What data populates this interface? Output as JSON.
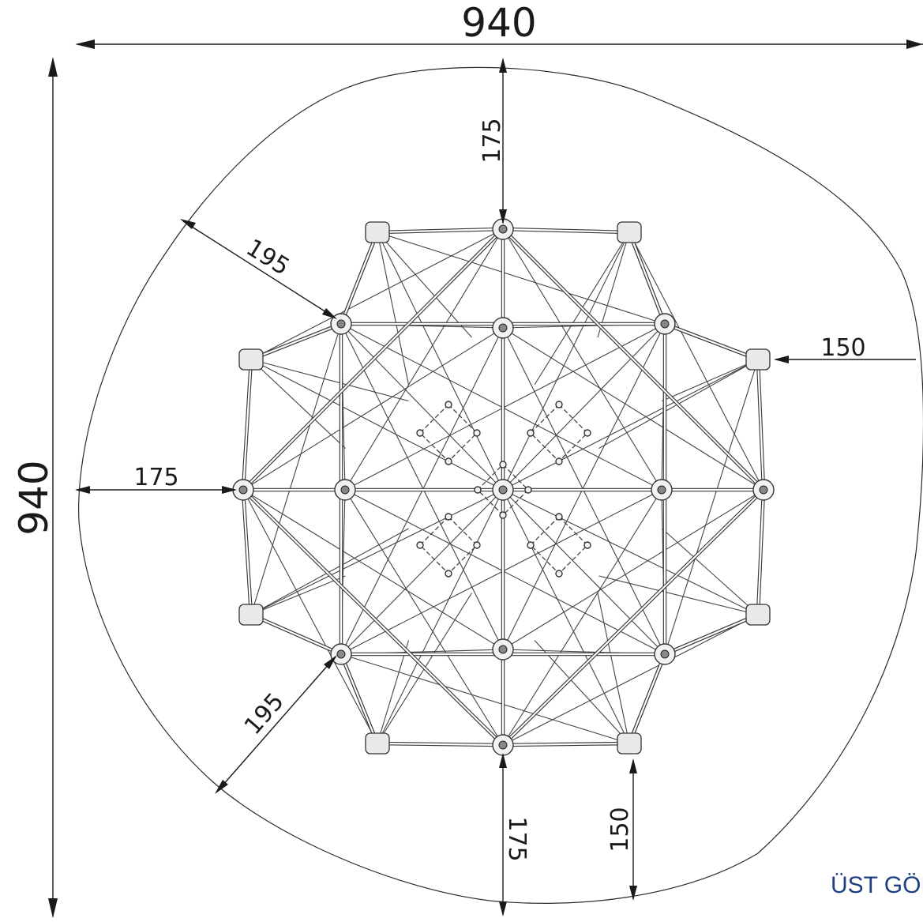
{
  "dimensions": {
    "overall_width": "940",
    "overall_height": "940",
    "top_clearance": "175",
    "upper_left_diagonal": "195",
    "right_clearance": "150",
    "left_clearance": "175",
    "lower_left_diagonal": "195",
    "bottom_clearance": "175",
    "bottom_right_clearance": "150"
  },
  "view_label": "ÜST GÖRÜNÜŞ",
  "colors": {
    "line": "#1a1a1a",
    "label": "#1f3f80"
  }
}
